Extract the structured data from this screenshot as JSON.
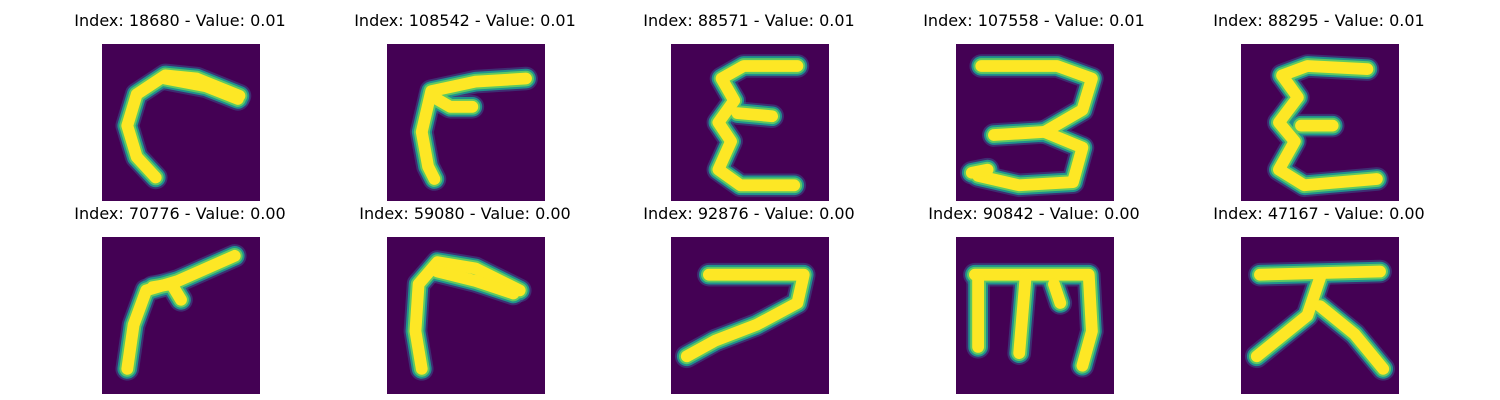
{
  "colors": {
    "background": "#440154",
    "low": "#3b528b",
    "mid": "#21918c",
    "high": "#5ec962",
    "peak": "#fde725"
  },
  "grid": [
    {
      "title": "Index: 18680 - Value: 0.01",
      "glyph": "c-hook",
      "strokes": [
        [
          [
            0.87,
            0.33
          ],
          [
            0.6,
            0.22
          ],
          [
            0.4,
            0.2
          ],
          [
            0.22,
            0.32
          ],
          [
            0.16,
            0.52
          ],
          [
            0.22,
            0.72
          ],
          [
            0.34,
            0.85
          ]
        ],
        [
          [
            0.4,
            0.22
          ],
          [
            0.66,
            0.27
          ],
          [
            0.86,
            0.35
          ]
        ]
      ]
    },
    {
      "title": "Index: 108542 - Value: 0.01",
      "glyph": "reversed-seven",
      "strokes": [
        [
          [
            0.88,
            0.22
          ],
          [
            0.56,
            0.24
          ],
          [
            0.28,
            0.3
          ],
          [
            0.22,
            0.56
          ],
          [
            0.26,
            0.78
          ],
          [
            0.3,
            0.86
          ]
        ],
        [
          [
            0.28,
            0.33
          ],
          [
            0.4,
            0.4
          ],
          [
            0.54,
            0.4
          ]
        ]
      ]
    },
    {
      "title": "Index: 88571 - Value: 0.01",
      "glyph": "epsilon",
      "strokes": [
        [
          [
            0.8,
            0.14
          ],
          [
            0.46,
            0.14
          ],
          [
            0.32,
            0.22
          ],
          [
            0.4,
            0.36
          ],
          [
            0.3,
            0.5
          ],
          [
            0.38,
            0.62
          ],
          [
            0.3,
            0.8
          ],
          [
            0.44,
            0.9
          ],
          [
            0.78,
            0.9
          ]
        ],
        [
          [
            0.42,
            0.44
          ],
          [
            0.64,
            0.46
          ]
        ]
      ]
    },
    {
      "title": "Index: 107558 - Value: 0.01",
      "glyph": "three-loop",
      "strokes": [
        [
          [
            0.16,
            0.14
          ],
          [
            0.64,
            0.14
          ],
          [
            0.86,
            0.22
          ],
          [
            0.8,
            0.42
          ],
          [
            0.56,
            0.56
          ],
          [
            0.8,
            0.66
          ],
          [
            0.74,
            0.88
          ],
          [
            0.4,
            0.9
          ],
          [
            0.14,
            0.84
          ]
        ],
        [
          [
            0.24,
            0.58
          ],
          [
            0.56,
            0.56
          ]
        ],
        [
          [
            0.1,
            0.82
          ],
          [
            0.2,
            0.8
          ]
        ]
      ]
    },
    {
      "title": "Index: 88295 - Value: 0.01",
      "glyph": "epsilon",
      "strokes": [
        [
          [
            0.8,
            0.16
          ],
          [
            0.42,
            0.14
          ],
          [
            0.26,
            0.2
          ],
          [
            0.36,
            0.34
          ],
          [
            0.24,
            0.5
          ],
          [
            0.34,
            0.62
          ],
          [
            0.24,
            0.8
          ],
          [
            0.4,
            0.9
          ],
          [
            0.86,
            0.86
          ]
        ],
        [
          [
            0.38,
            0.52
          ],
          [
            0.58,
            0.52
          ]
        ]
      ]
    },
    {
      "title": "Index: 70776 - Value: 0.00",
      "glyph": "bent-seven",
      "strokes": [
        [
          [
            0.84,
            0.12
          ],
          [
            0.48,
            0.28
          ],
          [
            0.28,
            0.34
          ],
          [
            0.2,
            0.56
          ],
          [
            0.16,
            0.84
          ]
        ],
        [
          [
            0.32,
            0.32
          ],
          [
            0.44,
            0.3
          ],
          [
            0.5,
            0.4
          ]
        ]
      ]
    },
    {
      "title": "Index: 59080 - Value: 0.00",
      "glyph": "gamma",
      "strokes": [
        [
          [
            0.84,
            0.34
          ],
          [
            0.56,
            0.2
          ],
          [
            0.32,
            0.16
          ],
          [
            0.2,
            0.3
          ],
          [
            0.18,
            0.6
          ],
          [
            0.22,
            0.84
          ]
        ],
        [
          [
            0.32,
            0.22
          ],
          [
            0.56,
            0.28
          ],
          [
            0.8,
            0.36
          ]
        ]
      ]
    },
    {
      "title": "Index: 92876 - Value: 0.00",
      "glyph": "seven-tail",
      "strokes": [
        [
          [
            0.24,
            0.24
          ],
          [
            0.84,
            0.24
          ],
          [
            0.8,
            0.42
          ],
          [
            0.54,
            0.56
          ],
          [
            0.28,
            0.66
          ],
          [
            0.1,
            0.76
          ]
        ]
      ]
    },
    {
      "title": "Index: 90842 - Value: 0.00",
      "glyph": "three-prong",
      "strokes": [
        [
          [
            0.12,
            0.24
          ],
          [
            0.84,
            0.24
          ],
          [
            0.86,
            0.6
          ],
          [
            0.8,
            0.82
          ]
        ],
        [
          [
            0.14,
            0.26
          ],
          [
            0.14,
            0.7
          ]
        ],
        [
          [
            0.44,
            0.26
          ],
          [
            0.4,
            0.74
          ]
        ],
        [
          [
            0.62,
            0.3
          ],
          [
            0.66,
            0.42
          ]
        ]
      ]
    },
    {
      "title": "Index: 47167 - Value: 0.00",
      "glyph": "tau-split",
      "strokes": [
        [
          [
            0.12,
            0.24
          ],
          [
            0.88,
            0.22
          ]
        ],
        [
          [
            0.5,
            0.26
          ],
          [
            0.42,
            0.5
          ],
          [
            0.1,
            0.76
          ]
        ],
        [
          [
            0.5,
            0.44
          ],
          [
            0.72,
            0.62
          ],
          [
            0.9,
            0.84
          ]
        ]
      ]
    }
  ]
}
